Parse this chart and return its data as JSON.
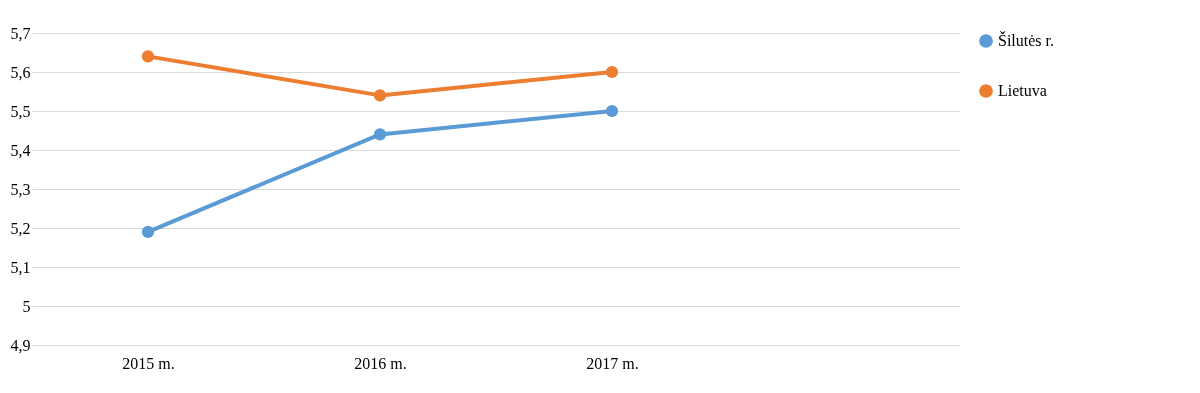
{
  "chart_data": {
    "type": "line",
    "categories": [
      "2015 m.",
      "2016 m.",
      "2017 m.",
      null
    ],
    "series": [
      {
        "name": "Šilutės r.",
        "color": "#5b9bd5",
        "values": [
          5.19,
          5.44,
          5.5,
          null
        ]
      },
      {
        "name": "Lietuva",
        "color": "#ed7d31",
        "values": [
          5.64,
          5.54,
          5.6,
          null
        ]
      }
    ],
    "ylim": [
      4.9,
      5.7
    ],
    "yticks": [
      {
        "value": 4.9,
        "label": "4,9"
      },
      {
        "value": 5,
        "label": "5"
      },
      {
        "value": 5.1,
        "label": "5,1"
      },
      {
        "value": 5.2,
        "label": "5,2"
      },
      {
        "value": 5.3,
        "label": "5,3"
      },
      {
        "value": 5.4,
        "label": "5,4"
      },
      {
        "value": 5.5,
        "label": "5,5"
      },
      {
        "value": 5.6,
        "label": "5,6"
      },
      {
        "value": 5.7,
        "label": "5,7"
      }
    ],
    "grid": "y",
    "legend": "right",
    "marker": "circle",
    "line_style": "solid"
  }
}
